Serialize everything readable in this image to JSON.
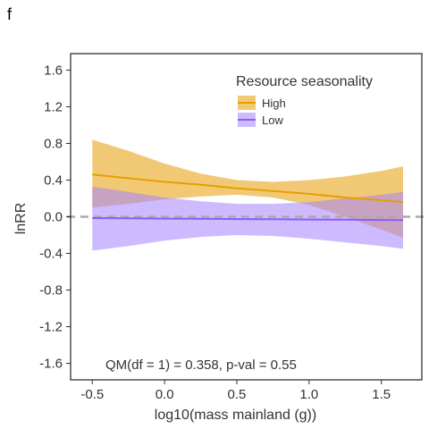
{
  "panel_label": "f",
  "chart_data": {
    "type": "line",
    "title": "",
    "xlabel": "log10(mass mainland (g))",
    "ylabel": "lnRR",
    "xlim": [
      -0.65,
      1.78
    ],
    "ylim": [
      -1.78,
      1.78
    ],
    "xticks": [
      -0.5,
      0.0,
      0.5,
      1.0,
      1.5
    ],
    "xtick_labels": [
      "-0.5",
      "0.0",
      "0.5",
      "1.0",
      "1.5"
    ],
    "yticks": [
      -1.6,
      -1.2,
      -0.8,
      -0.4,
      0.0,
      0.4,
      0.8,
      1.2,
      1.6
    ],
    "ytick_labels": [
      "-1.6",
      "-1.2",
      "-0.8",
      "-0.4",
      "0.0",
      "0.4",
      "0.8",
      "1.2",
      "1.6"
    ],
    "grid": false,
    "reference_line": {
      "y": 0.0,
      "style": "dashed",
      "color": "#aaaaaa"
    },
    "legend": {
      "title": "Resource seasonality",
      "placement": "top-right"
    },
    "annotation": "QM(df = 1) = 0.358, p-val = 0.55",
    "series": [
      {
        "name": "High",
        "color": "#E69F00",
        "band_color": "#EBB440",
        "x": [
          -0.5,
          -0.25,
          0.0,
          0.25,
          0.5,
          0.75,
          1.0,
          1.25,
          1.5,
          1.65
        ],
        "y": [
          0.46,
          0.42,
          0.38,
          0.35,
          0.31,
          0.28,
          0.25,
          0.21,
          0.18,
          0.16
        ],
        "lower": [
          0.1,
          0.14,
          0.19,
          0.22,
          0.24,
          0.21,
          0.13,
          0.0,
          -0.14,
          -0.23
        ],
        "upper": [
          0.84,
          0.72,
          0.58,
          0.47,
          0.4,
          0.38,
          0.4,
          0.44,
          0.5,
          0.55
        ]
      },
      {
        "name": "Low",
        "color": "#8B5CF6",
        "band_color": "#A682FF",
        "x": [
          -0.5,
          -0.25,
          0.0,
          0.25,
          0.5,
          0.75,
          1.0,
          1.25,
          1.5,
          1.65
        ],
        "y": [
          -0.015,
          -0.017,
          -0.02,
          -0.022,
          -0.025,
          -0.027,
          -0.03,
          -0.032,
          -0.035,
          -0.036
        ],
        "lower": [
          -0.37,
          -0.32,
          -0.26,
          -0.22,
          -0.2,
          -0.21,
          -0.24,
          -0.28,
          -0.32,
          -0.35
        ],
        "upper": [
          0.33,
          0.27,
          0.21,
          0.17,
          0.14,
          0.14,
          0.16,
          0.2,
          0.24,
          0.27
        ]
      }
    ]
  }
}
